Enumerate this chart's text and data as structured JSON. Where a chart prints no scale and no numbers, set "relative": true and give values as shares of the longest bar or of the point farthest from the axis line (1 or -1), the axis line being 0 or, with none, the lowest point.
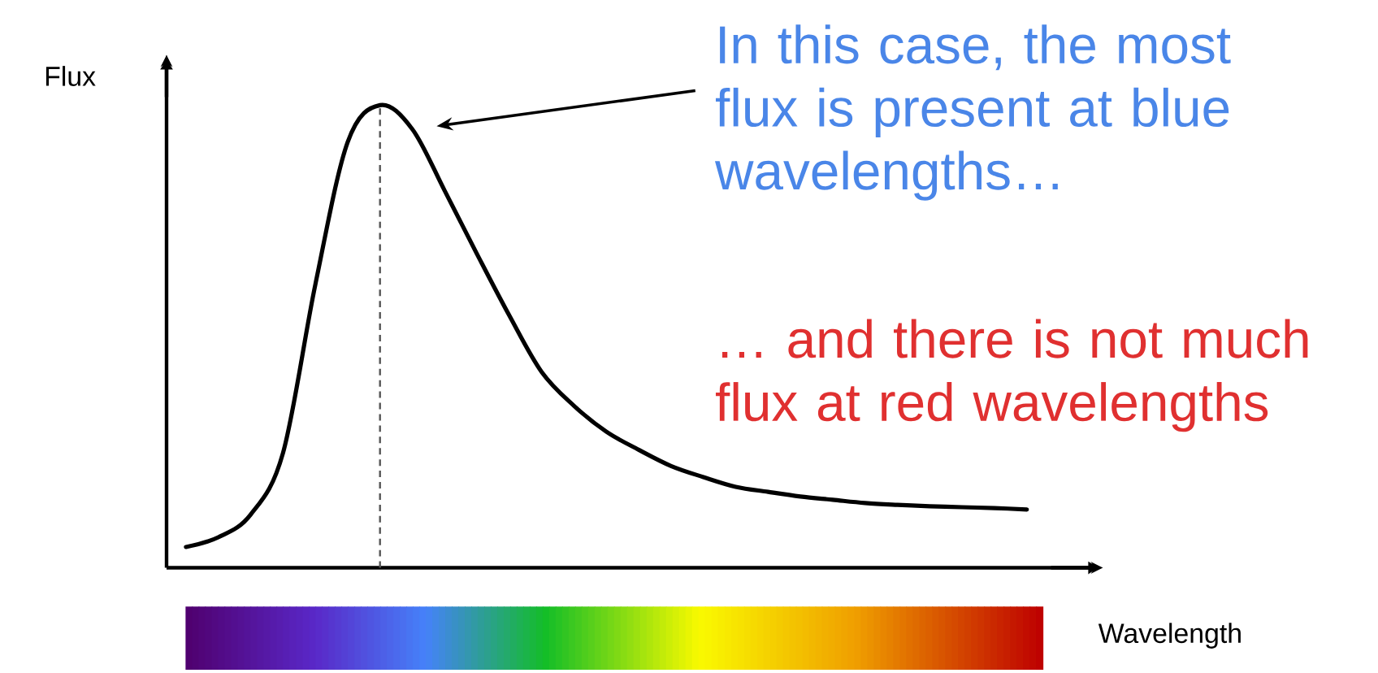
{
  "chart_data": {
    "type": "line",
    "relative": true,
    "xlabel": "Wavelength",
    "ylabel": "Flux",
    "categories": [
      null,
      null,
      null,
      null,
      null,
      null,
      null,
      null,
      null,
      null,
      null,
      null,
      null,
      null,
      null,
      null,
      null,
      null,
      null,
      null,
      null,
      null,
      null,
      null,
      null,
      null,
      null
    ],
    "series": [
      {
        "color": "#000000",
        "values": [
          0.045,
          0.066,
          0.115,
          0.248,
          0.612,
          0.92,
          1.0,
          0.948,
          0.815,
          0.678,
          0.545,
          0.423,
          0.35,
          0.294,
          0.255,
          0.22,
          0.196,
          0.175,
          0.164,
          0.154,
          0.147,
          0.14,
          0.136,
          0.133,
          0.131,
          0.129,
          0.126
        ]
      }
    ],
    "annotations": [
      "In this case, the most flux is present at blue wavelengths…",
      "… and there is not much flux at red wavelengths"
    ],
    "marker": "none",
    "line_style": "solid"
  }
}
